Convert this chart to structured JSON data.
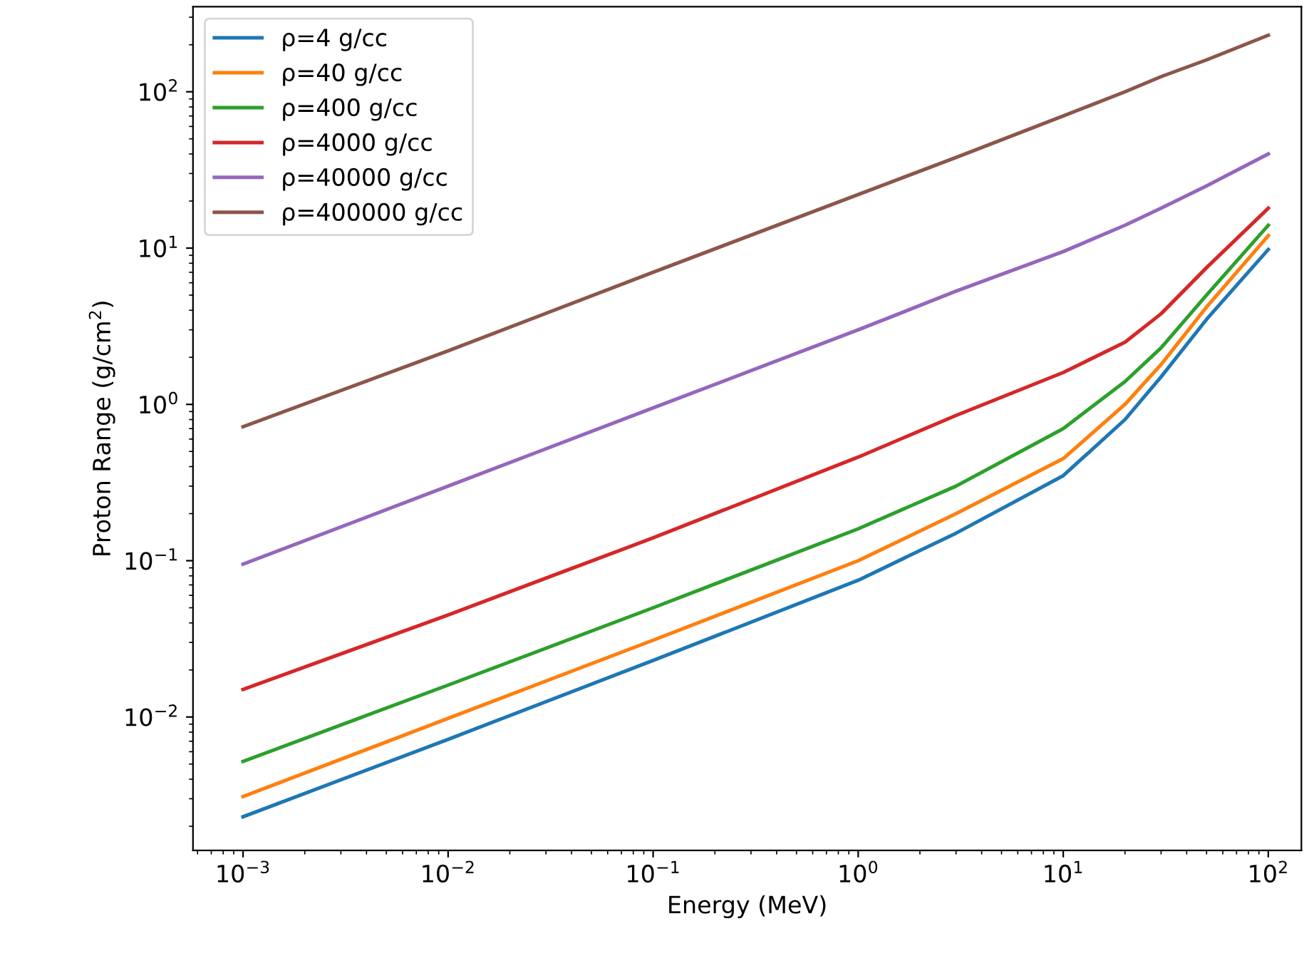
{
  "chart_data": {
    "type": "line",
    "xlabel": "Energy (MeV)",
    "ylabel": "Proton Range (g/cm$^{2}$)",
    "log": "xy",
    "grid": false,
    "legend": "top left",
    "marker": "none",
    "line_style": "solid",
    "xlim": [
      0.00057,
      145
    ],
    "ylim": [
      0.0014,
      350
    ],
    "xticks": [
      {
        "value": 0.001,
        "label": "10$^{−3}$"
      },
      {
        "value": 0.01,
        "label": "10$^{−2}$"
      },
      {
        "value": 0.1,
        "label": "10$^{−1}$"
      },
      {
        "value": 1,
        "label": "10$^{0}$"
      },
      {
        "value": 10,
        "label": "10$^{1}$"
      },
      {
        "value": 100,
        "label": "10$^{2}$"
      }
    ],
    "yticks": [
      {
        "value": 0.01,
        "label": "10$^{−2}$"
      },
      {
        "value": 0.1,
        "label": "10$^{−1}$"
      },
      {
        "value": 1,
        "label": "10$^{0}$"
      },
      {
        "value": 10,
        "label": "10$^{1}$"
      },
      {
        "value": 100,
        "label": "10$^{2}$"
      }
    ],
    "x": [
      0.001,
      0.01,
      0.1,
      1,
      3,
      10,
      20,
      30,
      50,
      100
    ],
    "series": [
      {
        "name": "ρ=4 g/cc",
        "color": "#1f77b4",
        "values": [
          0.0023,
          0.0072,
          0.023,
          0.075,
          0.15,
          0.35,
          0.8,
          1.5,
          3.5,
          9.8
        ]
      },
      {
        "name": "ρ=40 g/cc",
        "color": "#ff7f0e",
        "values": [
          0.0031,
          0.0098,
          0.031,
          0.1,
          0.2,
          0.45,
          1.0,
          1.8,
          4.2,
          12
        ]
      },
      {
        "name": "ρ=400 g/cc",
        "color": "#2ca02c",
        "values": [
          0.0052,
          0.016,
          0.05,
          0.16,
          0.3,
          0.7,
          1.4,
          2.3,
          5,
          14
        ]
      },
      {
        "name": "ρ=4000 g/cc",
        "color": "#d62728",
        "values": [
          0.015,
          0.045,
          0.14,
          0.46,
          0.85,
          1.6,
          2.5,
          3.8,
          7.5,
          18
        ]
      },
      {
        "name": "ρ=40000 g/cc",
        "color": "#9467bd",
        "values": [
          0.095,
          0.3,
          0.95,
          3.0,
          5.3,
          9.5,
          14,
          18,
          25,
          40
        ]
      },
      {
        "name": "ρ=400000 g/cc",
        "color": "#8c564b",
        "values": [
          0.72,
          2.2,
          7.0,
          22,
          38,
          70,
          100,
          125,
          160,
          230
        ]
      }
    ]
  }
}
